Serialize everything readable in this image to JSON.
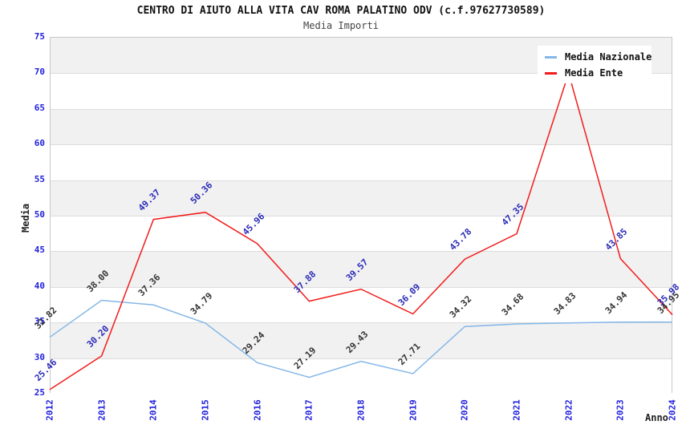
{
  "chart_data": {
    "type": "line",
    "title": "CENTRO DI AIUTO ALLA VITA CAV ROMA PALATINO ODV (c.f.97627730589)",
    "subtitle": "Media Importi",
    "xlabel": "Anno",
    "ylabel": "Media",
    "x": [
      "2012",
      "2013",
      "2014",
      "2015",
      "2016",
      "2017",
      "2018",
      "2019",
      "2020",
      "2021",
      "2022",
      "2023",
      "2024"
    ],
    "ylim": [
      25,
      75
    ],
    "ytick_step": 5,
    "yticks": [
      25,
      30,
      35,
      40,
      45,
      50,
      55,
      60,
      65,
      70,
      75
    ],
    "grid": "horizontal-bands",
    "legend_position": "top-right",
    "series": [
      {
        "name": "Media Nazionale",
        "color": "#85b7e8",
        "label_color": "#333333",
        "values": [
          32.82,
          38.0,
          37.36,
          34.79,
          29.24,
          27.19,
          29.43,
          27.71,
          34.32,
          34.68,
          34.83,
          34.94,
          34.95
        ],
        "labels": [
          "32.82",
          "38.00",
          "37.36",
          "34.79",
          "29.24",
          "27.19",
          "29.43",
          "27.71",
          "34.32",
          "34.68",
          "34.83",
          "34.94",
          "34.95"
        ]
      },
      {
        "name": "Media Ente",
        "color": "#f21c1c",
        "label_color": "#2a2ab8",
        "values": [
          25.46,
          30.2,
          49.37,
          50.36,
          45.96,
          37.88,
          39.57,
          36.09,
          43.78,
          47.35,
          69.9,
          43.85,
          35.98
        ],
        "labels": [
          "25.46",
          "30.20",
          "49.37",
          "50.36",
          "45.96",
          "37.88",
          "39.57",
          "36.09",
          "43.78",
          "47.35",
          null,
          "43.85",
          "35.98"
        ]
      }
    ],
    "colors": {
      "axis_text": "#2222dd",
      "band_gray": "#f1f1f1",
      "band_white": "#ffffff",
      "gridline": "#dcdcdc",
      "plot_border": "#c8c8c8",
      "title": "#111111",
      "subtitle": "#444444",
      "legend_bg": "#ffffff"
    }
  }
}
